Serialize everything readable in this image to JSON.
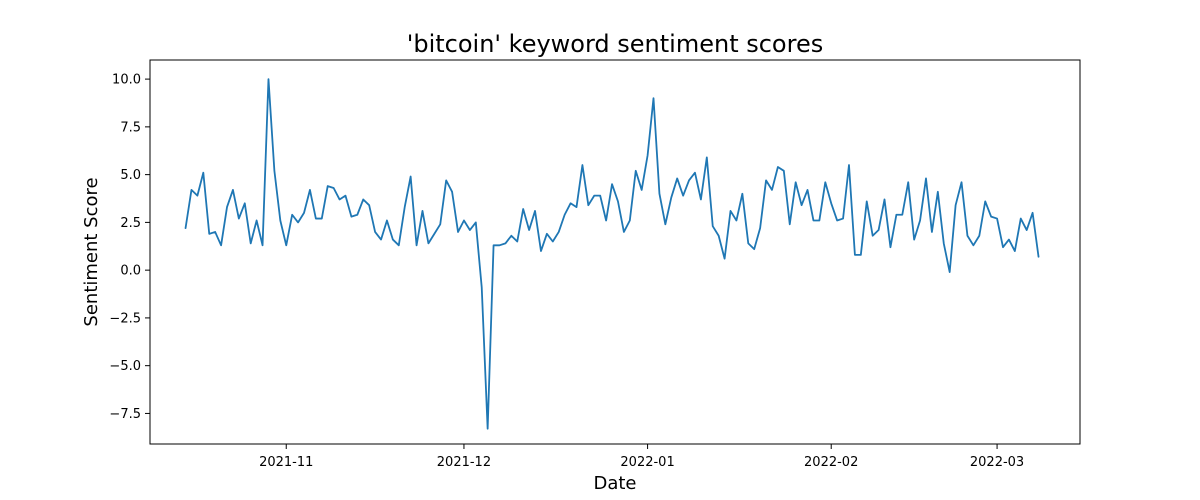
{
  "chart_data": {
    "type": "line",
    "title": "'bitcoin' keyword sentiment scores",
    "xlabel": "Date",
    "ylabel": "Sentiment Score",
    "x_range": [
      "2021-10-09",
      "2022-03-15"
    ],
    "ylim": [
      -9.1,
      11.0
    ],
    "yticks": [
      -7.5,
      -5.0,
      -2.5,
      0.0,
      2.5,
      5.0,
      7.5,
      10.0
    ],
    "ytick_labels": [
      "−7.5",
      "−5.0",
      "−2.5",
      "0.0",
      "2.5",
      "5.0",
      "7.5",
      "10.0"
    ],
    "xticks": [
      "2021-11-01",
      "2021-12-01",
      "2022-01-01",
      "2022-02-01",
      "2022-03-01"
    ],
    "xtick_labels": [
      "2021-11",
      "2021-12",
      "2022-01",
      "2022-02",
      "2022-03"
    ],
    "grid": false,
    "series": [
      {
        "color": "#1f77b4",
        "start_date": "2021-10-15",
        "dates": "daily",
        "values": [
          2.2,
          4.2,
          3.9,
          5.1,
          1.9,
          2.0,
          1.3,
          3.3,
          4.2,
          2.7,
          3.5,
          1.4,
          2.6,
          1.3,
          10.0,
          5.2,
          2.6,
          1.3,
          2.9,
          2.5,
          3.0,
          4.2,
          2.7,
          2.7,
          4.4,
          4.3,
          3.7,
          3.9,
          2.8,
          2.9,
          3.7,
          3.4,
          2.0,
          1.6,
          2.6,
          1.6,
          1.3,
          3.3,
          4.9,
          1.3,
          3.1,
          1.4,
          1.9,
          2.4,
          4.7,
          4.1,
          2.0,
          2.6,
          2.1,
          2.5,
          -0.9,
          -8.3,
          1.3,
          1.3,
          1.4,
          1.8,
          1.5,
          3.2,
          2.1,
          3.1,
          1.0,
          1.9,
          1.5,
          2.0,
          2.9,
          3.5,
          3.3,
          5.5,
          3.4,
          3.9,
          3.9,
          2.6,
          4.5,
          3.6,
          2.0,
          2.6,
          5.2,
          4.2,
          6.0,
          9.0,
          4.0,
          2.4,
          3.8,
          4.8,
          3.9,
          4.7,
          5.1,
          3.7,
          5.9,
          2.3,
          1.8,
          0.6,
          3.1,
          2.6,
          4.0,
          1.4,
          1.1,
          2.2,
          4.7,
          4.2,
          5.4,
          5.2,
          2.4,
          4.6,
          3.4,
          4.2,
          2.6,
          2.6,
          4.6,
          3.5,
          2.6,
          2.7,
          5.5,
          0.8,
          0.8,
          3.6,
          1.8,
          2.1,
          3.7,
          1.2,
          2.9,
          2.9,
          4.6,
          1.6,
          2.6,
          4.8,
          2.0,
          4.1,
          1.4,
          -0.1,
          3.4,
          4.6,
          1.8,
          1.3,
          1.8,
          3.6,
          2.8,
          2.7,
          1.2,
          1.6,
          1.0,
          2.7,
          2.1,
          3.0,
          0.7
        ]
      }
    ]
  }
}
